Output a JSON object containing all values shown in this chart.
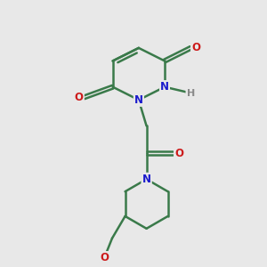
{
  "bg_color": "#e8e8e8",
  "bond_color": "#3a7a4a",
  "bond_width": 1.8,
  "atom_colors": {
    "N": "#1a1acc",
    "O": "#cc1a1a",
    "H": "#888888"
  },
  "font_size": 8.5,
  "fig_size": [
    3.0,
    3.0
  ],
  "dpi": 100,
  "xlim": [
    0,
    10
  ],
  "ylim": [
    0,
    10
  ]
}
